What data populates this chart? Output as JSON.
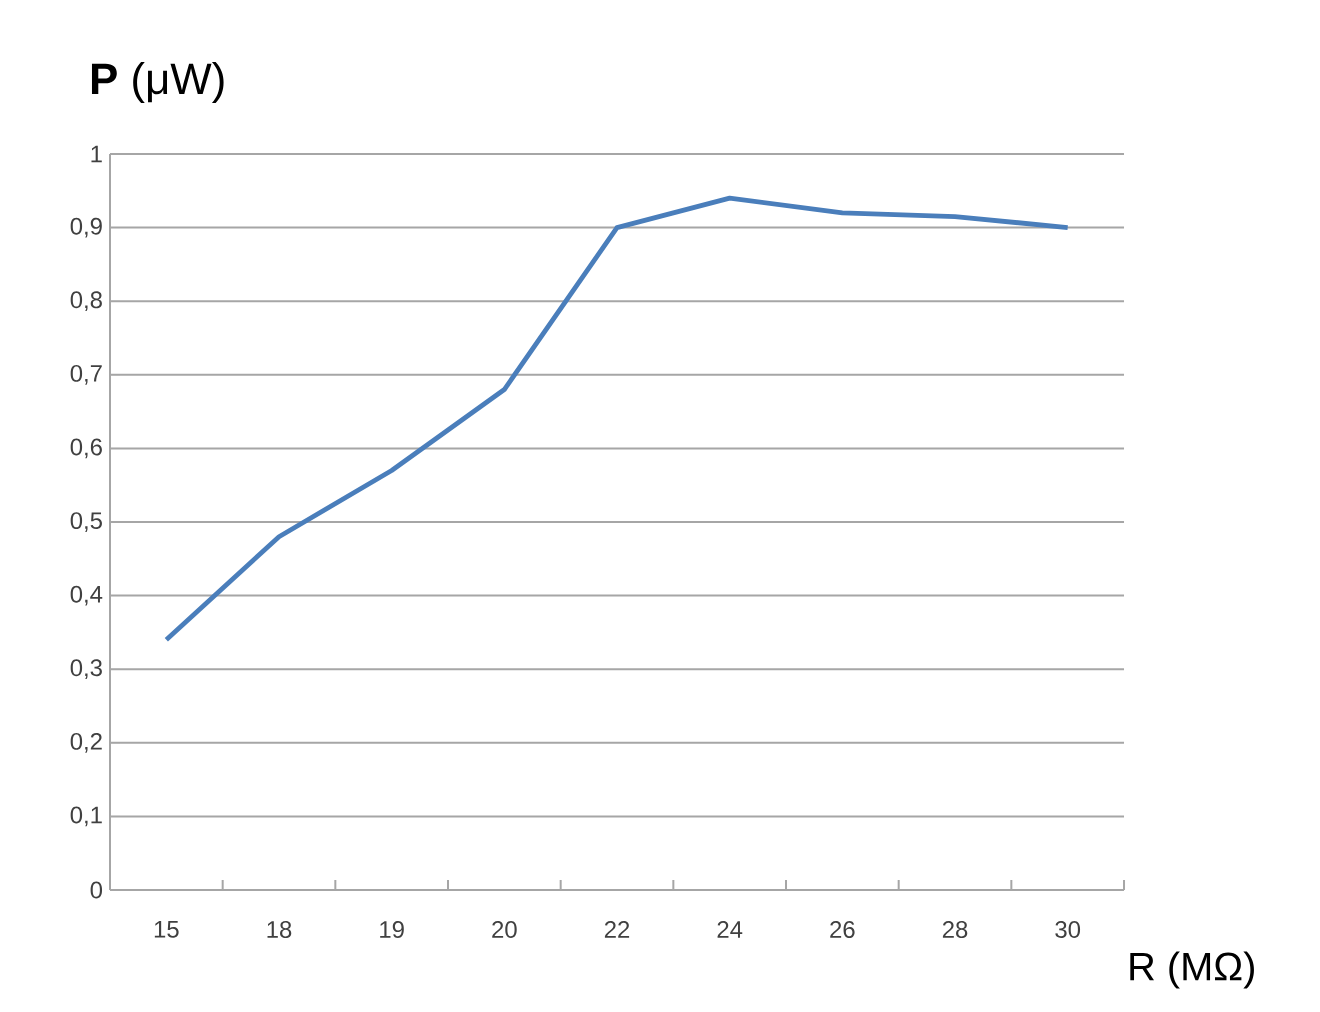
{
  "chart_data": {
    "type": "line",
    "ylabel": "**P** (μW)",
    "xlabel": "R (MΩ)",
    "categories": [
      "15",
      "18",
      "19",
      "20",
      "22",
      "24",
      "26",
      "28",
      "30"
    ],
    "series": [
      {
        "color": "#4a7ebb",
        "values": [
          0.34,
          0.48,
          0.57,
          0.68,
          0.9,
          0.94,
          0.92,
          0.915,
          0.9
        ]
      }
    ],
    "ylim": [
      0,
      1
    ],
    "yticks": [
      0,
      {
        "value": 0.1,
        "label": "0,1"
      },
      {
        "value": 0.2,
        "label": "0,2"
      },
      {
        "value": 0.3,
        "label": "0,3"
      },
      {
        "value": 0.4,
        "label": "0,4"
      },
      {
        "value": 0.5,
        "label": "0,5"
      },
      {
        "value": 0.6,
        "label": "0,6"
      },
      {
        "value": 0.7,
        "label": "0,7"
      },
      {
        "value": 0.8,
        "label": "0,8"
      },
      {
        "value": 0.9,
        "label": "0,9"
      },
      1
    ],
    "grid": "y",
    "marker": "none",
    "line_style": "solid",
    "legend": false
  }
}
